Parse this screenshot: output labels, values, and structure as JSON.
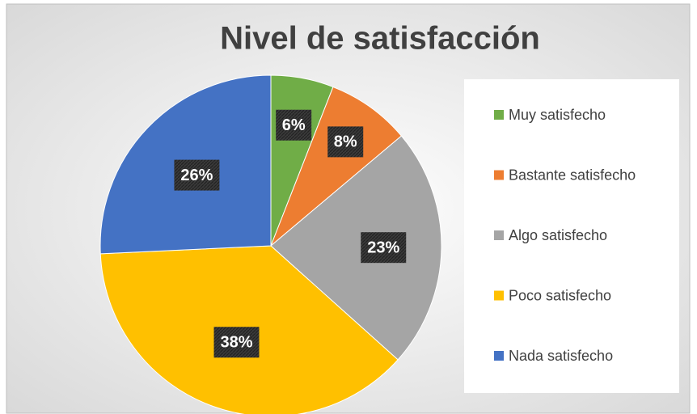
{
  "chart_data": {
    "type": "pie",
    "title": "Nivel de satisfacción",
    "categories": [
      "Muy satisfecho",
      "Bastante satisfecho",
      "Algo satisfecho",
      "Poco satisfecho",
      "Nada satisfecho"
    ],
    "values": [
      6,
      8,
      23,
      38,
      26
    ],
    "value_labels": [
      "6%",
      "8%",
      "23%",
      "38%",
      "26%"
    ],
    "colors": [
      "#70ad47",
      "#ed7d31",
      "#a5a5a5",
      "#ffc000",
      "#4472c4"
    ],
    "legend": "right"
  }
}
